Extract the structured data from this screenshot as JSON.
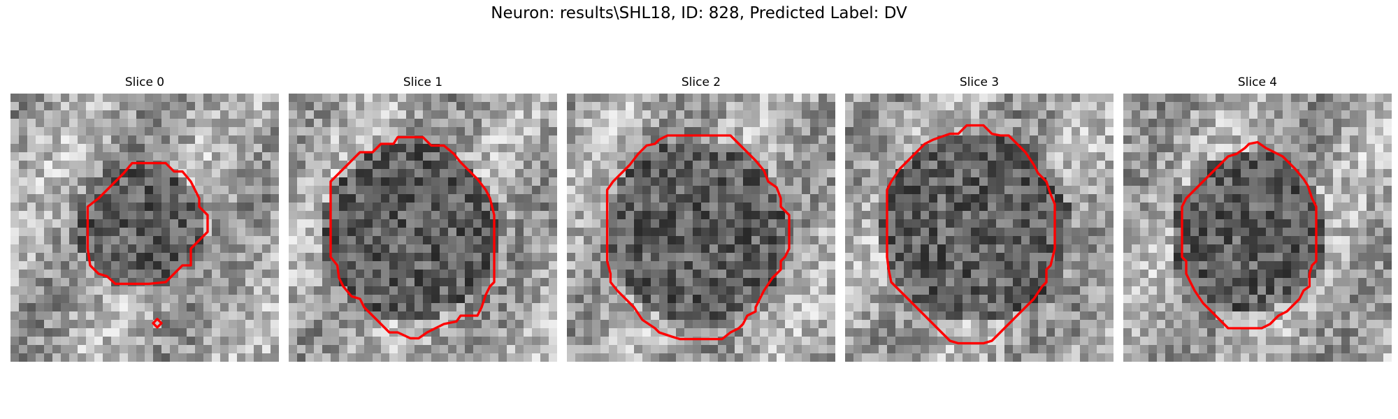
{
  "figure": {
    "title": "Neuron: results\\SHL18, ID: 828, Predicted Label: DV"
  },
  "colors": {
    "contour": "#ff0000",
    "background": "#ffffff",
    "colormap": "gray"
  },
  "grid_size": 32,
  "panels": [
    {
      "title": "Slice 0",
      "seed": 11,
      "contours": [
        [
          [
            14.5,
            8.3
          ],
          [
            18.5,
            8.3
          ],
          [
            19.5,
            9.3
          ],
          [
            20.5,
            9.3
          ],
          [
            21.5,
            10.5
          ],
          [
            22.5,
            12.5
          ],
          [
            22.5,
            13.5
          ],
          [
            23.5,
            14.5
          ],
          [
            23.5,
            16.5
          ],
          [
            22.5,
            17.5
          ],
          [
            21.5,
            18.5
          ],
          [
            21.5,
            20.5
          ],
          [
            20.5,
            20.5
          ],
          [
            19.5,
            21.5
          ],
          [
            18.5,
            22.5
          ],
          [
            16.5,
            22.7
          ],
          [
            12.5,
            22.7
          ],
          [
            11.5,
            21.8
          ],
          [
            10.5,
            21.5
          ],
          [
            9.5,
            20.5
          ],
          [
            9.2,
            18.5
          ],
          [
            9.2,
            13.5
          ],
          [
            10.5,
            12.5
          ],
          [
            11.5,
            11.5
          ],
          [
            12.5,
            10.5
          ],
          [
            13.5,
            9.5
          ]
        ],
        [
          [
            17.5,
            26.9
          ],
          [
            18.0,
            27.4
          ],
          [
            17.5,
            27.9
          ],
          [
            17.0,
            27.4
          ]
        ]
      ],
      "dark_region": {
        "cx": 15.5,
        "cy": 15.5,
        "r": 7.8
      }
    },
    {
      "title": "Slice 1",
      "seed": 23,
      "contours": [
        [
          [
            13.0,
            5.2
          ],
          [
            16.0,
            5.2
          ],
          [
            17.0,
            6.2
          ],
          [
            18.5,
            6.2
          ],
          [
            19.7,
            7.2
          ],
          [
            20.5,
            8.2
          ],
          [
            22.5,
            10.2
          ],
          [
            23.5,
            11.5
          ],
          [
            24.0,
            12.5
          ],
          [
            24.5,
            14.5
          ],
          [
            24.5,
            22.5
          ],
          [
            24.0,
            23.0
          ],
          [
            23.5,
            24.0
          ],
          [
            23.0,
            25.5
          ],
          [
            22.5,
            26.5
          ],
          [
            20.5,
            26.5
          ],
          [
            20.0,
            27.2
          ],
          [
            18.5,
            27.5
          ],
          [
            16.5,
            28.5
          ],
          [
            15.5,
            29.2
          ],
          [
            14.5,
            29.2
          ],
          [
            13.0,
            28.5
          ],
          [
            12.0,
            28.5
          ],
          [
            11.0,
            27.5
          ],
          [
            10.0,
            26.5
          ],
          [
            9.0,
            25.5
          ],
          [
            8.5,
            24.5
          ],
          [
            7.5,
            24.2
          ],
          [
            6.5,
            23.0
          ],
          [
            6.0,
            22.0
          ],
          [
            5.8,
            20.5
          ],
          [
            5.0,
            19.5
          ],
          [
            5.0,
            10.5
          ],
          [
            6.0,
            9.5
          ],
          [
            7.0,
            8.5
          ],
          [
            8.5,
            7.0
          ],
          [
            10.0,
            7.0
          ],
          [
            11.0,
            6.0
          ],
          [
            12.5,
            6.0
          ]
        ]
      ],
      "dark_region": {
        "cx": 14.5,
        "cy": 16.5,
        "r": 10.5
      }
    },
    {
      "title": "Slice 2",
      "seed": 37,
      "contours": [
        [
          [
            11.0,
            5.5
          ],
          [
            12.0,
            5.0
          ],
          [
            19.5,
            5.0
          ],
          [
            20.5,
            6.0
          ],
          [
            21.5,
            7.0
          ],
          [
            22.5,
            8.0
          ],
          [
            23.5,
            9.2
          ],
          [
            24.0,
            10.5
          ],
          [
            25.0,
            11.2
          ],
          [
            25.5,
            12.5
          ],
          [
            25.5,
            13.5
          ],
          [
            26.5,
            14.5
          ],
          [
            26.5,
            18.5
          ],
          [
            26.0,
            19.5
          ],
          [
            25.5,
            20.0
          ],
          [
            25.5,
            21.0
          ],
          [
            24.5,
            22.0
          ],
          [
            23.5,
            23.5
          ],
          [
            22.5,
            25.5
          ],
          [
            22.5,
            26.0
          ],
          [
            21.5,
            26.5
          ],
          [
            21.0,
            27.5
          ],
          [
            20.5,
            28.0
          ],
          [
            19.5,
            28.5
          ],
          [
            18.5,
            29.3
          ],
          [
            13.5,
            29.3
          ],
          [
            12.5,
            29.0
          ],
          [
            11.0,
            28.5
          ],
          [
            10.5,
            28.0
          ],
          [
            9.0,
            27.0
          ],
          [
            8.0,
            25.5
          ],
          [
            7.0,
            24.5
          ],
          [
            6.0,
            23.5
          ],
          [
            5.2,
            22.5
          ],
          [
            5.2,
            21.5
          ],
          [
            4.8,
            20.0
          ],
          [
            4.8,
            11.5
          ],
          [
            5.5,
            10.5
          ],
          [
            6.5,
            9.5
          ],
          [
            7.5,
            8.5
          ],
          [
            8.5,
            7.2
          ],
          [
            9.5,
            6.2
          ],
          [
            10.5,
            6.0
          ]
        ]
      ],
      "dark_region": {
        "cx": 15.5,
        "cy": 16.5,
        "r": 11.0
      }
    },
    {
      "title": "Slice 3",
      "seed": 41,
      "contours": [
        [
          [
            14.5,
            3.8
          ],
          [
            16.5,
            3.8
          ],
          [
            17.5,
            4.8
          ],
          [
            18.5,
            5.0
          ],
          [
            19.5,
            5.0
          ],
          [
            20.5,
            6.0
          ],
          [
            21.5,
            7.0
          ],
          [
            22.5,
            8.5
          ],
          [
            23.0,
            9.5
          ],
          [
            24.0,
            10.5
          ],
          [
            24.5,
            12.0
          ],
          [
            25.0,
            13.2
          ],
          [
            25.0,
            18.5
          ],
          [
            24.5,
            20.5
          ],
          [
            24.0,
            21.0
          ],
          [
            24.0,
            22.5
          ],
          [
            23.5,
            23.0
          ],
          [
            22.5,
            24.5
          ],
          [
            21.5,
            25.5
          ],
          [
            20.5,
            26.5
          ],
          [
            19.5,
            27.5
          ],
          [
            18.5,
            28.5
          ],
          [
            17.5,
            29.5
          ],
          [
            16.5,
            29.8
          ],
          [
            13.5,
            29.8
          ],
          [
            12.5,
            29.5
          ],
          [
            11.5,
            28.5
          ],
          [
            10.5,
            27.5
          ],
          [
            9.5,
            26.5
          ],
          [
            8.5,
            25.5
          ],
          [
            7.5,
            24.5
          ],
          [
            6.5,
            23.5
          ],
          [
            5.5,
            22.5
          ],
          [
            5.2,
            21.0
          ],
          [
            5.0,
            19.5
          ],
          [
            5.0,
            11.5
          ],
          [
            5.5,
            10.5
          ],
          [
            6.5,
            9.0
          ],
          [
            7.5,
            8.0
          ],
          [
            8.5,
            7.0
          ],
          [
            9.5,
            6.0
          ],
          [
            10.5,
            5.5
          ],
          [
            12.5,
            4.8
          ],
          [
            13.5,
            4.8
          ]
        ]
      ],
      "dark_region": {
        "cx": 15.5,
        "cy": 16.0,
        "r": 11.5
      }
    },
    {
      "title": "Slice 4",
      "seed": 53,
      "contours": [
        [
          [
            15.0,
            6.0
          ],
          [
            16.0,
            5.8
          ],
          [
            17.0,
            6.5
          ],
          [
            18.0,
            7.0
          ],
          [
            19.0,
            7.5
          ],
          [
            20.5,
            9.0
          ],
          [
            21.5,
            10.2
          ],
          [
            22.0,
            11.0
          ],
          [
            22.5,
            12.5
          ],
          [
            23.0,
            13.5
          ],
          [
            23.0,
            20.0
          ],
          [
            22.5,
            20.5
          ],
          [
            22.2,
            21.5
          ],
          [
            22.2,
            23.0
          ],
          [
            21.5,
            23.5
          ],
          [
            21.0,
            24.5
          ],
          [
            20.5,
            25.0
          ],
          [
            19.5,
            26.0
          ],
          [
            18.5,
            26.5
          ],
          [
            17.5,
            27.5
          ],
          [
            16.5,
            28.0
          ],
          [
            12.5,
            28.0
          ],
          [
            11.5,
            27.0
          ],
          [
            10.5,
            26.0
          ],
          [
            9.5,
            25.0
          ],
          [
            8.5,
            23.5
          ],
          [
            8.0,
            22.5
          ],
          [
            7.5,
            21.5
          ],
          [
            7.5,
            20.0
          ],
          [
            7.0,
            19.5
          ],
          [
            7.0,
            13.5
          ],
          [
            7.5,
            12.5
          ],
          [
            8.5,
            11.5
          ],
          [
            9.5,
            10.5
          ],
          [
            10.5,
            9.5
          ],
          [
            11.5,
            8.5
          ],
          [
            12.5,
            7.5
          ],
          [
            13.5,
            7.2
          ],
          [
            14.5,
            6.5
          ]
        ]
      ],
      "dark_region": {
        "cx": 15.0,
        "cy": 16.5,
        "r": 9.5
      }
    }
  ]
}
